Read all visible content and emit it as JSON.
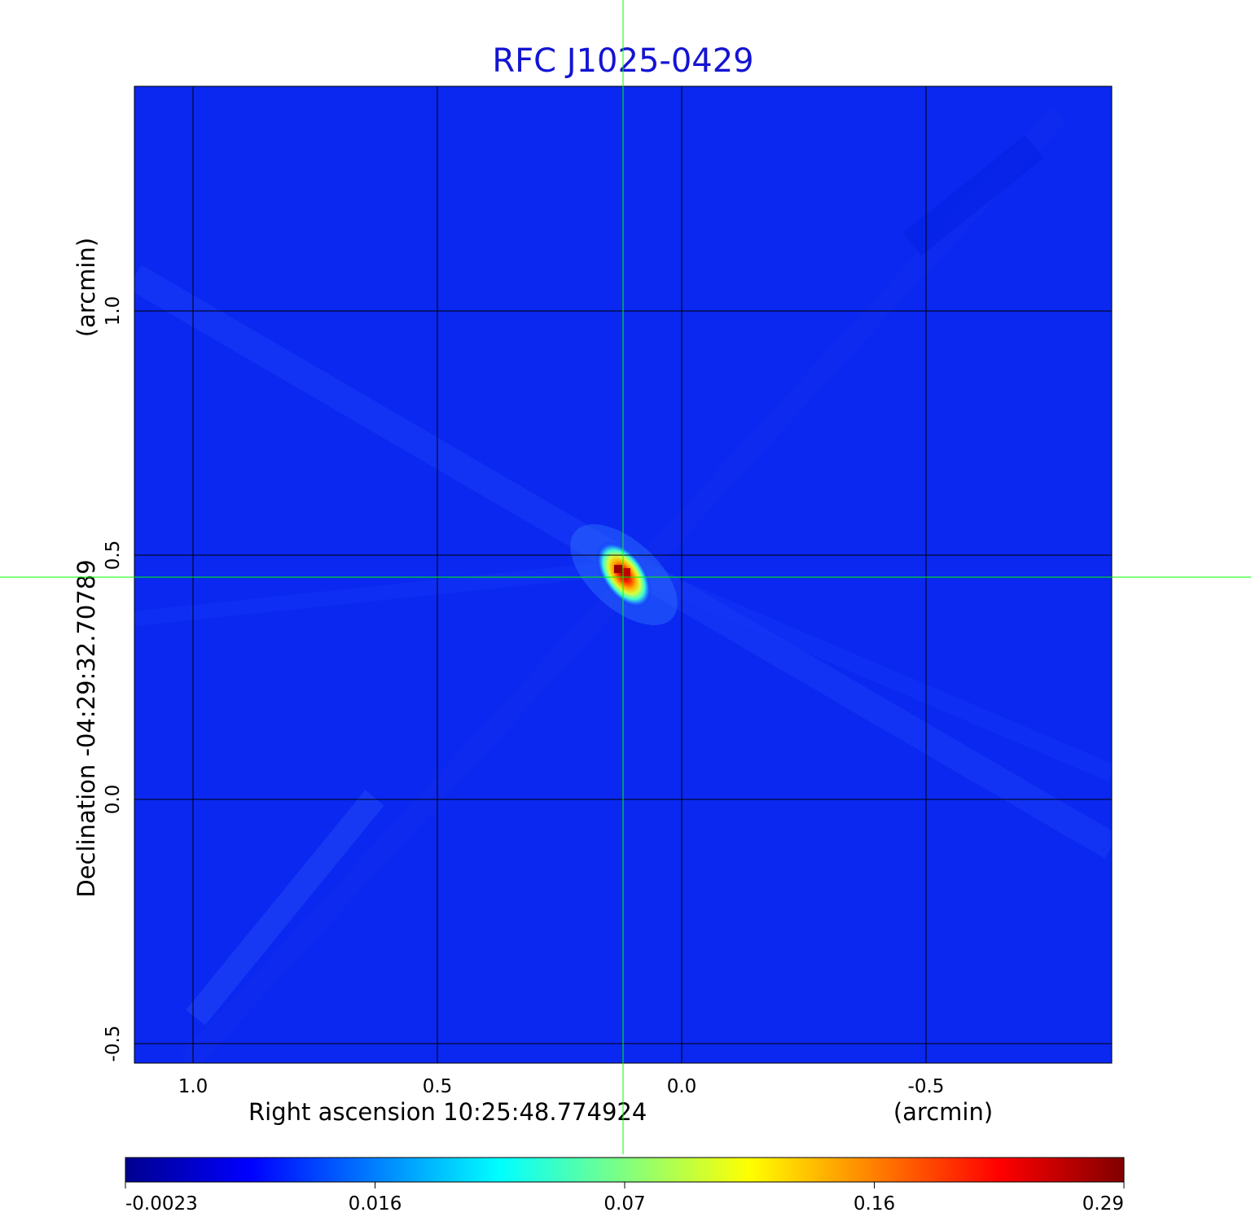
{
  "chart_data": {
    "type": "heatmap",
    "title": "RFC J1025-0429",
    "xlabel": "Right ascension  10:25:48.774924",
    "xunit": "(arcmin)",
    "ylabel": "Declination  -04:29:32.70789",
    "yunit": "(arcmin)",
    "xlim": [
      1.12,
      -0.88
    ],
    "ylim": [
      -0.54,
      1.46
    ],
    "x_ticks": [
      "1.0",
      "0.5",
      "0.0",
      "-0.5"
    ],
    "x_tick_values": [
      1.0,
      0.5,
      0.0,
      -0.5
    ],
    "y_ticks": [
      "-0.5",
      "0.0",
      "0.5",
      "1.0"
    ],
    "y_tick_values": [
      -0.5,
      0.0,
      0.5,
      1.0
    ],
    "grid": true,
    "crosshair": {
      "x": 0.12,
      "y": 0.455
    },
    "peak": {
      "x": 0.12,
      "y": 0.455,
      "value": 0.29
    },
    "colorbar": {
      "colormap": "jet",
      "ticks": [
        "-0.0023",
        "0.016",
        "0.07",
        "0.16",
        "0.29"
      ],
      "min": -0.0023,
      "max": 0.29
    }
  },
  "colors": {
    "title": "#1414d2",
    "background": "#0a28f0",
    "crosshair": "#00ff00",
    "grid": "#000000"
  }
}
